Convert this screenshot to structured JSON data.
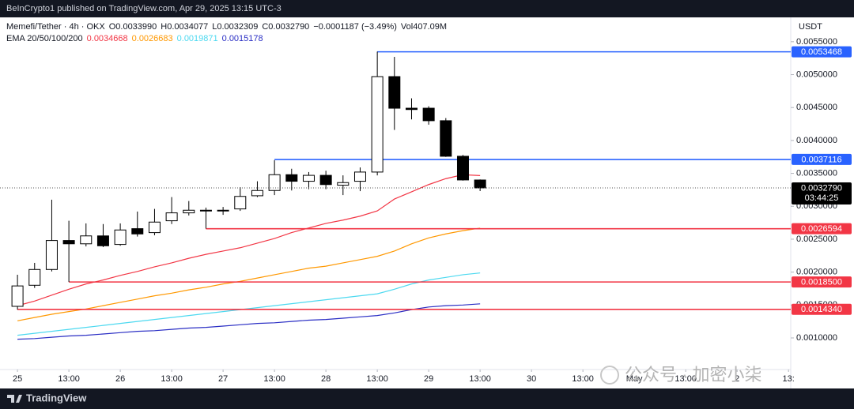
{
  "top_bar": "BeInCrypto1 published on TradingView.com, Apr 29, 2025 13:15 UTC-3",
  "footer": "TradingView",
  "watermark": "公众号 · 加密小柒",
  "chart_data": {
    "type": "candlestick",
    "symbol": "Memefi/Tether · 4h · OKX",
    "header_values": [
      "O0.0033990",
      "H0.0034077",
      "L0.0032309",
      "C0.0032790",
      "−0.0001187 (−3.49%)",
      "Vol407.09M"
    ],
    "currency": "USDT",
    "up_color": "#ffffff",
    "down_color": "#000000",
    "open": [
      0.00148,
      0.0018,
      0.00204,
      0.00248,
      0.00243,
      0.00255,
      0.00242,
      0.00266,
      0.0026,
      0.00278,
      0.0029,
      0.00294,
      0.00293,
      0.00296,
      0.00316,
      0.00324,
      0.00348,
      0.00338,
      0.00347,
      0.00332,
      0.00338,
      0.00352,
      0.00497,
      0.00449,
      0.00449,
      0.0043,
      0.00376,
      0.003399
    ],
    "high": [
      0.00196,
      0.00214,
      0.0031,
      0.00278,
      0.00274,
      0.00273,
      0.00274,
      0.00292,
      0.00296,
      0.00314,
      0.00308,
      0.00298,
      0.00299,
      0.00329,
      0.00338,
      0.0037,
      0.00357,
      0.00352,
      0.00354,
      0.00347,
      0.00359,
      0.00535,
      0.00527,
      0.00464,
      0.00452,
      0.00434,
      0.00378,
      0.0034077
    ],
    "low": [
      0.00143,
      0.00176,
      0.00201,
      0.00185,
      0.00239,
      0.00238,
      0.0024,
      0.00254,
      0.00256,
      0.00273,
      0.00286,
      0.00266,
      0.00287,
      0.00293,
      0.00314,
      0.00317,
      0.00324,
      0.00326,
      0.00326,
      0.00317,
      0.00323,
      0.00347,
      0.00416,
      0.00432,
      0.00424,
      0.00375,
      0.00339,
      0.0032309
    ],
    "close": [
      0.00179,
      0.00204,
      0.00248,
      0.00243,
      0.00255,
      0.0024,
      0.00264,
      0.00258,
      0.00276,
      0.0029,
      0.00294,
      0.00293,
      0.00294,
      0.00315,
      0.00324,
      0.00348,
      0.00338,
      0.00347,
      0.00333,
      0.00336,
      0.00352,
      0.00497,
      0.00449,
      0.00447,
      0.0043,
      0.00376,
      0.0034,
      0.003279
    ],
    "ema": {
      "label": "EMA 20/50/100/200",
      "series": [
        {
          "color": "#f23645",
          "value_label": "0.0034668",
          "values": [
            0.00149,
            0.00156,
            0.00165,
            0.00174,
            0.00182,
            0.00188,
            0.00195,
            0.00201,
            0.00208,
            0.00214,
            0.00221,
            0.00227,
            0.00232,
            0.00237,
            0.00244,
            0.00251,
            0.0026,
            0.00267,
            0.00274,
            0.00279,
            0.00285,
            0.00293,
            0.00311,
            0.00322,
            0.00333,
            0.00342,
            0.00348,
            0.0034668
          ]
        },
        {
          "color": "#ff9800",
          "value_label": "0.0026683",
          "values": [
            0.00126,
            0.00131,
            0.00136,
            0.0014,
            0.00144,
            0.00149,
            0.00154,
            0.00159,
            0.00164,
            0.00168,
            0.00173,
            0.00177,
            0.00182,
            0.00186,
            0.00191,
            0.00196,
            0.00201,
            0.00206,
            0.00209,
            0.00214,
            0.00219,
            0.00224,
            0.00232,
            0.00243,
            0.00252,
            0.00258,
            0.00263,
            0.0026683
          ]
        },
        {
          "color": "#4dd9f0",
          "value_label": "0.0019871",
          "values": [
            0.00104,
            0.00107,
            0.0011,
            0.00113,
            0.00116,
            0.00119,
            0.00122,
            0.00125,
            0.00128,
            0.00131,
            0.00134,
            0.00137,
            0.0014,
            0.00143,
            0.00146,
            0.00149,
            0.00152,
            0.00155,
            0.00158,
            0.00161,
            0.00164,
            0.00167,
            0.00174,
            0.00182,
            0.00188,
            0.00192,
            0.00196,
            0.0019871
          ]
        },
        {
          "color": "#2a2ec4",
          "value_label": "0.0015178",
          "values": [
            0.00098,
            0.00099,
            0.00101,
            0.00103,
            0.00104,
            0.00106,
            0.00108,
            0.0011,
            0.00111,
            0.00113,
            0.00115,
            0.00116,
            0.00118,
            0.0012,
            0.00122,
            0.00123,
            0.00125,
            0.00127,
            0.00128,
            0.0013,
            0.00132,
            0.00134,
            0.00138,
            0.00143,
            0.00147,
            0.00149,
            0.0015,
            0.0015178
          ]
        }
      ]
    },
    "levels": [
      {
        "value": 0.0053468,
        "label": "0.0053468",
        "color": "#2962ff"
      },
      {
        "value": 0.0037116,
        "label": "0.0037116",
        "color": "#2962ff"
      },
      {
        "value": 0.0026594,
        "label": "0.0026594",
        "color": "#f23645"
      },
      {
        "value": 0.00185,
        "label": "0.0018500",
        "color": "#f23645"
      },
      {
        "value": 0.001434,
        "label": "0.0014340",
        "color": "#f23645"
      }
    ],
    "current_price": {
      "value": 0.003279,
      "label": "0.0032790",
      "countdown": "03:44:25"
    },
    "xlim": [
      -1.02,
      45.13
    ],
    "xticks": [
      {
        "value": 0,
        "label": "25"
      },
      {
        "value": 3,
        "label": "13:00"
      },
      {
        "value": 6,
        "label": "26"
      },
      {
        "value": 9,
        "label": "13:00"
      },
      {
        "value": 12,
        "label": "27"
      },
      {
        "value": 15,
        "label": "13:00"
      },
      {
        "value": 18,
        "label": "28"
      },
      {
        "value": 21,
        "label": "13:00"
      },
      {
        "value": 24,
        "label": "29"
      },
      {
        "value": 27,
        "label": "13:00"
      },
      {
        "value": 30,
        "label": "30"
      },
      {
        "value": 33,
        "label": "13:00"
      },
      {
        "value": 36,
        "label": "May"
      },
      {
        "value": 39,
        "label": "13:00"
      },
      {
        "value": 42,
        "label": "2"
      },
      {
        "value": 45,
        "label": "13:"
      }
    ],
    "ylim": [
      0.00052,
      0.00587
    ],
    "yticks": [
      {
        "value": 0.001,
        "label": "0.0010000"
      },
      {
        "value": 0.0015,
        "label": "0.0015000"
      },
      {
        "value": 0.002,
        "label": "0.0020000"
      },
      {
        "value": 0.0025,
        "label": "0.0025000"
      },
      {
        "value": 0.003,
        "label": "0.0030000"
      },
      {
        "value": 0.0035,
        "label": "0.0035000"
      },
      {
        "value": 0.004,
        "label": "0.0040000"
      },
      {
        "value": 0.0045,
        "label": "0.0045000"
      },
      {
        "value": 0.005,
        "label": "0.0050000"
      },
      {
        "value": 0.0055,
        "label": "0.0055000"
      }
    ]
  }
}
